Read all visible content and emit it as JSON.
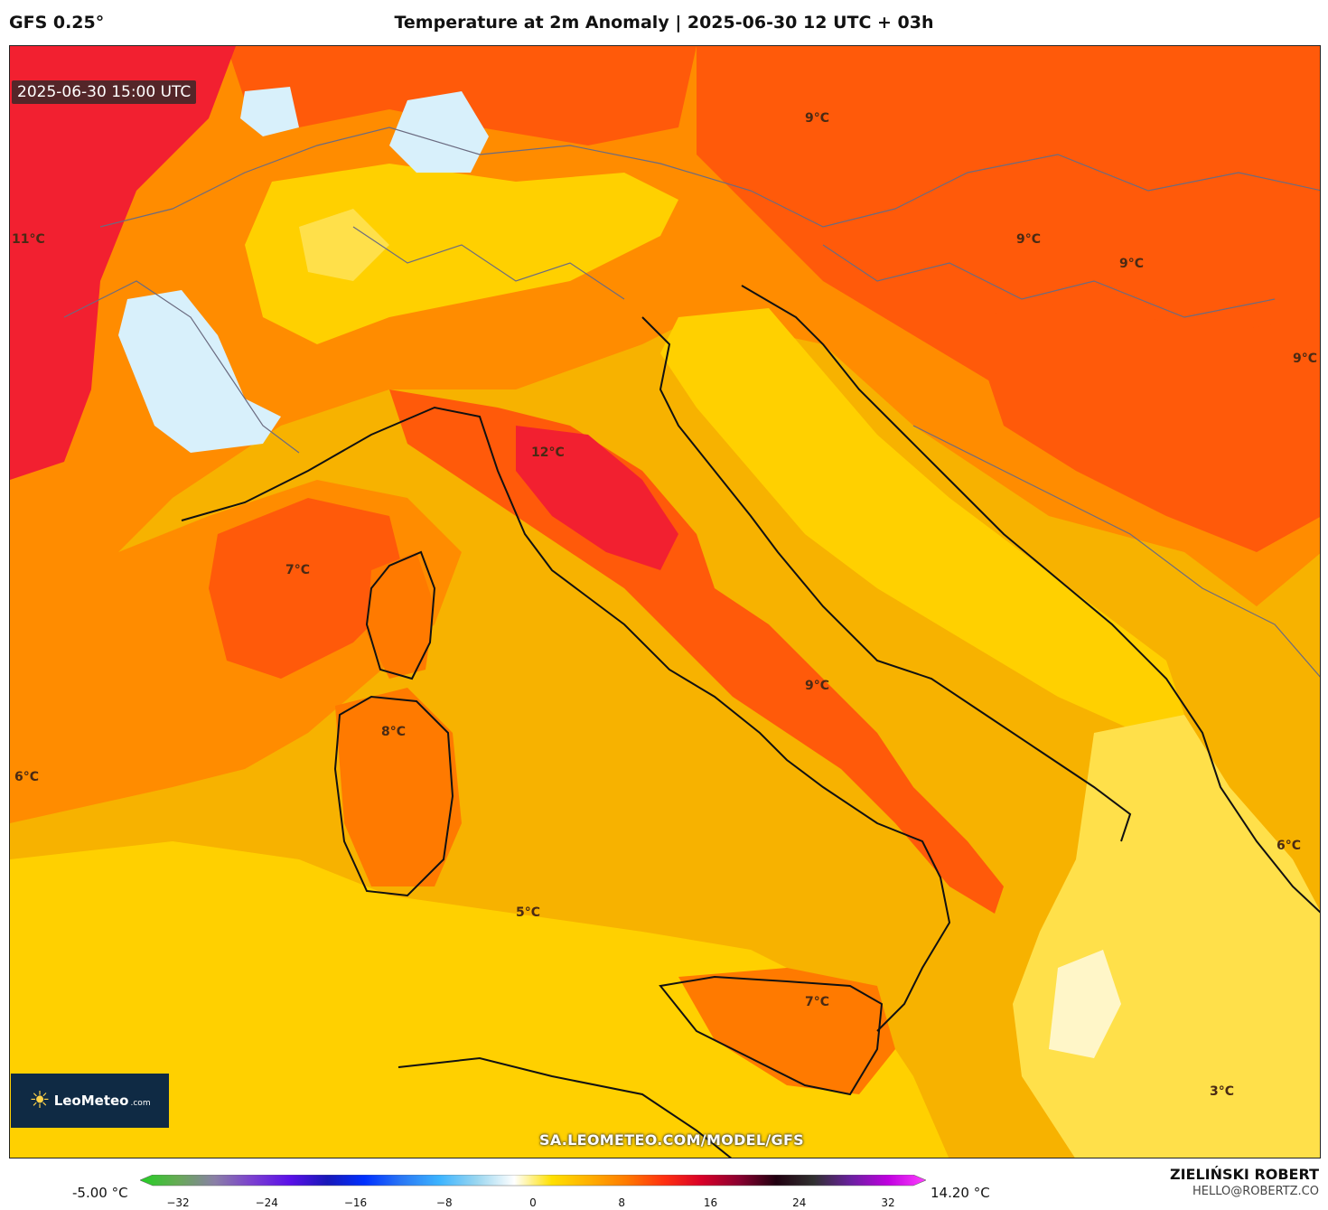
{
  "header": {
    "model": "GFS 0.25°",
    "title": "Temperature at 2m Anomaly | 2025-06-30 12 UTC + 03h"
  },
  "map": {
    "valid_time": "2025-06-30 15:00 UTC",
    "url_text": "SA.LEOMETEO.COM/MODEL/GFS",
    "logo": {
      "brand": "LeoMeteo",
      "suffix": ".com"
    },
    "temperature_labels": [
      "11°C",
      "9°C",
      "9°C",
      "9°C",
      "9°C",
      "12°C",
      "7°C",
      "8°C",
      "6°C",
      "9°C",
      "5°C",
      "7°C",
      "6°C",
      "3°C"
    ],
    "fill_colors": {
      "sea_base": "#f7b200",
      "warm": "#ff8c00",
      "hot": "#ff5a0a",
      "very_hot": "#f22030",
      "cool": "#ffe04a",
      "cold": "#d8f0fb",
      "pale": "#fff6c8"
    }
  },
  "colorbar": {
    "min_label": "-5.00 °C",
    "max_label": "14.20 °C",
    "ticks": [
      "−32",
      "−24",
      "−16",
      "−8",
      "0",
      "8",
      "16",
      "24",
      "32"
    ],
    "colors": [
      "#22d022",
      "#66aa55",
      "#8a7fa6",
      "#7b3fd0",
      "#5a10e8",
      "#1818b8",
      "#0030ff",
      "#2a78f5",
      "#3cb4ff",
      "#9ad6f0",
      "#ffffff",
      "#ffe000",
      "#ffb000",
      "#ff7a00",
      "#ff3010",
      "#d80028",
      "#8a0030",
      "#200010",
      "#303030",
      "#6a20a0",
      "#c000e0",
      "#ff40ff"
    ]
  },
  "credit": {
    "name": "ZIELIŃSKI ROBERT",
    "email": "HELLO@ROBERTZ.CO"
  }
}
